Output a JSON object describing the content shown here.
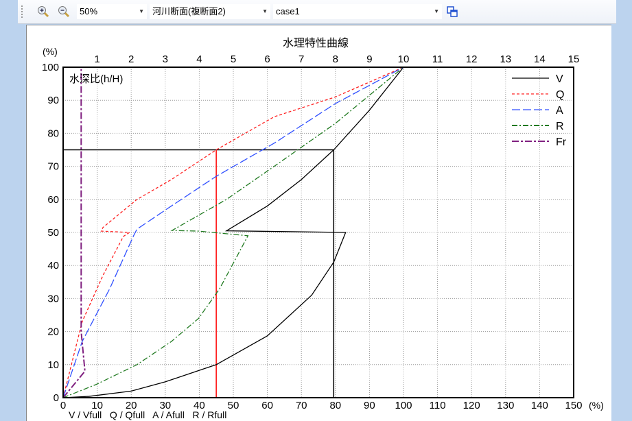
{
  "toolbar": {
    "zoom_in": "zoom-in",
    "zoom_out": "zoom-out",
    "zoom_value": "50%",
    "section_value": "河川断面(複断面2)",
    "case_value": "case1"
  },
  "chart_data": {
    "type": "line",
    "title": "水理特性曲線",
    "ylabel": "水深比(h/H)",
    "yunit": "(%)",
    "xunit": "(%)",
    "xlabel": "V / Vfull   Q / Qfull   A / Afull   R / Rfull",
    "xlim": [
      0,
      150
    ],
    "ylim": [
      0,
      100
    ],
    "x_ticks": [
      0,
      10,
      20,
      30,
      40,
      50,
      60,
      70,
      80,
      90,
      100,
      110,
      120,
      130,
      140,
      150
    ],
    "y_ticks": [
      0,
      10,
      20,
      30,
      40,
      50,
      60,
      70,
      80,
      90,
      100
    ],
    "top_ticks": [
      1,
      2,
      3,
      4,
      5,
      6,
      7,
      8,
      9,
      10,
      11,
      12,
      13,
      14,
      15
    ],
    "grid": true,
    "legend_position": "top-right",
    "series": [
      {
        "name": "V",
        "color": "#000000",
        "dash": "",
        "points": [
          [
            0,
            0
          ],
          [
            7.6,
            0.4
          ],
          [
            20,
            2
          ],
          [
            30,
            4.8
          ],
          [
            45,
            10
          ],
          [
            60,
            18.7
          ],
          [
            73,
            31
          ],
          [
            79.5,
            41
          ],
          [
            83,
            50
          ],
          [
            48,
            50.5
          ],
          [
            60,
            58
          ],
          [
            70,
            66
          ],
          [
            79.5,
            75
          ],
          [
            90,
            87
          ],
          [
            100,
            100
          ]
        ]
      },
      {
        "name": "Q",
        "color": "#ff2020",
        "dash": "4,3",
        "points": [
          [
            0,
            0
          ],
          [
            5.6,
            23
          ],
          [
            11.7,
            37
          ],
          [
            17.7,
            48.8
          ],
          [
            19.5,
            50
          ],
          [
            11.2,
            50.4
          ],
          [
            11.7,
            51.5
          ],
          [
            21.7,
            60
          ],
          [
            31.8,
            66
          ],
          [
            45,
            75
          ],
          [
            62,
            85
          ],
          [
            80,
            91
          ],
          [
            100,
            100
          ]
        ]
      },
      {
        "name": "A",
        "color": "#3050ff",
        "dash": "12,4",
        "points": [
          [
            0,
            0
          ],
          [
            5.6,
            17
          ],
          [
            13.7,
            33
          ],
          [
            20.7,
            49
          ],
          [
            21.7,
            51
          ],
          [
            31.8,
            58
          ],
          [
            45,
            67
          ],
          [
            62,
            77
          ],
          [
            80,
            89
          ],
          [
            100,
            100
          ]
        ]
      },
      {
        "name": "R",
        "color": "#207a20",
        "dash": "8,3,2,3",
        "points": [
          [
            0,
            0
          ],
          [
            9.7,
            4
          ],
          [
            21.7,
            10
          ],
          [
            31.8,
            17
          ],
          [
            39.8,
            24
          ],
          [
            46,
            33
          ],
          [
            54.3,
            49
          ],
          [
            39.8,
            50.4
          ],
          [
            32,
            50.6
          ],
          [
            48,
            60
          ],
          [
            62,
            70
          ],
          [
            80,
            83
          ],
          [
            100,
            100
          ]
        ]
      },
      {
        "name": "Fr",
        "color": "#802080",
        "dash": "10,3,3,3",
        "points": [
          [
            0,
            0
          ],
          [
            6.4,
            8
          ],
          [
            5.3,
            20
          ],
          [
            5.3,
            100
          ]
        ]
      }
    ],
    "reference_lines": {
      "depth_ratio": 75,
      "q_ratio": 45,
      "v_ratio": 79.5
    }
  }
}
